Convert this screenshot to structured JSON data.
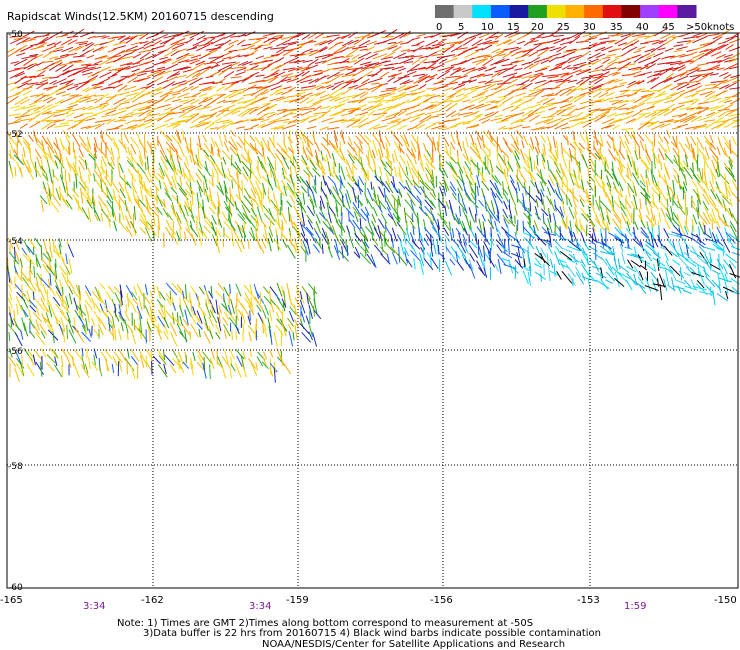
{
  "title": "Rapidscat Winds(12.5KM) 20160715 descending",
  "legend": {
    "labels": [
      "0",
      "5",
      "10",
      "15",
      "20",
      "25",
      "30",
      "35",
      "40",
      "45",
      ">50"
    ],
    "unit": "knots",
    "colors": [
      "#6e6e6e",
      "#c8c8c8",
      "#00e0ff",
      "#0a5cff",
      "#1a1aa0",
      "#1fa01f",
      "#f0e000",
      "#ffb000",
      "#ff6a00",
      "#e01010",
      "#800000",
      "#a040ff",
      "#ff00ff",
      "#5a1aa0"
    ]
  },
  "axes": {
    "lat_labels": [
      "-50",
      "-52",
      "-54",
      "-56",
      "-58",
      "-60"
    ],
    "lon_labels": [
      "-165",
      "-162",
      "-159",
      "-156",
      "-153",
      "-150"
    ]
  },
  "times": [
    "3:34",
    "3:34",
    "1:59"
  ],
  "notes": [
    "Note: 1) Times are GMT 2)Times along bottom correspond to measurement at -50S",
    "3)Data buffer is 22 hrs from 20160715 4) Black wind barbs indicate possible contamination",
    "NOAA/NESDIS/Center for Satellite Applications and Research"
  ]
}
